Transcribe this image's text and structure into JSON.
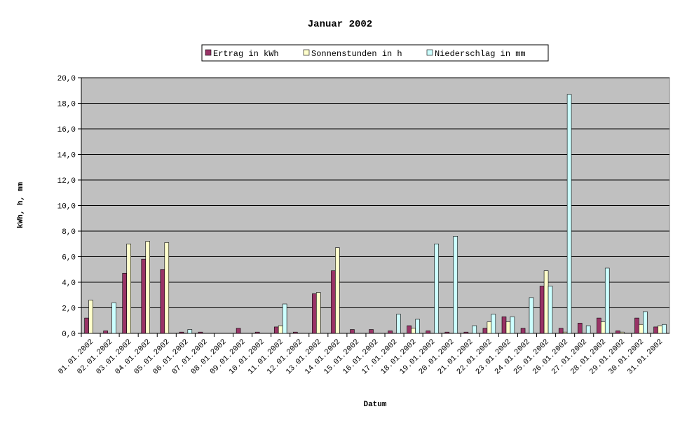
{
  "chart_data": {
    "type": "bar",
    "title": "Januar 2002",
    "x_label": "Datum",
    "y_label": "kWh, h, mm",
    "categories": [
      "01.01.2002",
      "02.01.2002",
      "03.01.2002",
      "04.01.2002",
      "05.01.2002",
      "06.01.2002",
      "07.01.2002",
      "08.01.2002",
      "09.01.2002",
      "10.01.2002",
      "11.01.2002",
      "12.01.2002",
      "13.01.2002",
      "14.01.2002",
      "15.01.2002",
      "16.01.2002",
      "17.01.2002",
      "18.01.2002",
      "19.01.2002",
      "20.01.2002",
      "21.01.2002",
      "22.01.2002",
      "23.01.2002",
      "24.01.2002",
      "25.01.2002",
      "26.01.2002",
      "27.01.2002",
      "28.01.2002",
      "29.01.2002",
      "30.01.2002",
      "31.01.2002"
    ],
    "series": [
      {
        "name": "Ertrag in kWh",
        "color": "#993366",
        "values": [
          1.2,
          0.2,
          4.7,
          5.8,
          5.0,
          0.1,
          0.1,
          0,
          0.4,
          0.1,
          0.5,
          0.1,
          3.1,
          4.9,
          0.3,
          0.3,
          0.2,
          0.6,
          0.2,
          0.1,
          0.1,
          0.4,
          1.3,
          0.4,
          3.7,
          0.4,
          0.8,
          1.2,
          0.2,
          1.2,
          0.5
        ]
      },
      {
        "name": "Sonnenstunden in h",
        "color": "#ffffcc",
        "values": [
          2.6,
          0,
          7.0,
          7.2,
          7.1,
          0,
          0,
          0,
          0,
          0,
          0.6,
          0,
          3.2,
          6.7,
          0,
          0,
          0,
          0.4,
          0,
          0,
          0,
          0.9,
          0.9,
          0,
          4.9,
          0.1,
          0,
          0.9,
          0.1,
          0.7,
          0.6
        ]
      },
      {
        "name": "Niederschlag in mm",
        "color": "#ccffff",
        "values": [
          0,
          2.4,
          0,
          0,
          0,
          0.3,
          0,
          0,
          0,
          0,
          2.3,
          0,
          0,
          0,
          0,
          0,
          1.5,
          1.1,
          7.0,
          7.6,
          0.6,
          1.5,
          1.3,
          2.8,
          3.7,
          18.7,
          0.6,
          5.1,
          0,
          1.7,
          0.7
        ]
      }
    ],
    "ylim": [
      0,
      20
    ],
    "yticks": [
      {
        "value": 0,
        "label": "0,0"
      },
      {
        "value": 2,
        "label": "2,0"
      },
      {
        "value": 4,
        "label": "4,0"
      },
      {
        "value": 6,
        "label": "6,0"
      },
      {
        "value": 8,
        "label": "8,0"
      },
      {
        "value": 10,
        "label": "10,0"
      },
      {
        "value": 12,
        "label": "12,0"
      },
      {
        "value": 14,
        "label": "14,0"
      },
      {
        "value": 16,
        "label": "16,0"
      },
      {
        "value": 18,
        "label": "18,0"
      },
      {
        "value": 20,
        "label": "20,0"
      }
    ],
    "grid": true,
    "legend": "top",
    "plot_background": "#c0c0c0"
  }
}
